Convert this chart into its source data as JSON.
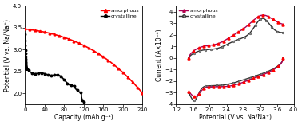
{
  "left_chart": {
    "xlabel": "Capacity (mAh g⁻¹)",
    "ylabel": "Potential (V vs. Na/Na⁺)",
    "xlim": [
      0,
      240
    ],
    "ylim": [
      1.75,
      4.0
    ],
    "xticks": [
      0,
      40,
      80,
      120,
      160,
      200,
      240
    ],
    "yticks": [
      2.0,
      2.5,
      3.0,
      3.5,
      4.0
    ],
    "amorphous_color": "#ff0000",
    "crystalline_color": "#000000"
  },
  "right_chart": {
    "xlabel": "Potential (V vs. Na/Na⁺)",
    "ylabel": "Current (A×10⁻⁴)",
    "xlim": [
      1.2,
      4.0
    ],
    "ylim": [
      -4.0,
      4.5
    ],
    "xticks": [
      1.2,
      1.6,
      2.0,
      2.4,
      2.8,
      3.2,
      3.6,
      4.0
    ],
    "yticks": [
      -4,
      -3,
      -2,
      -1,
      0,
      1,
      2,
      3,
      4
    ],
    "amorphous_line_color": "#aa0055",
    "amorphous_marker_color": "#ff0000",
    "crystalline_line_color": "#333333",
    "crystalline_marker_color": "#888888"
  }
}
